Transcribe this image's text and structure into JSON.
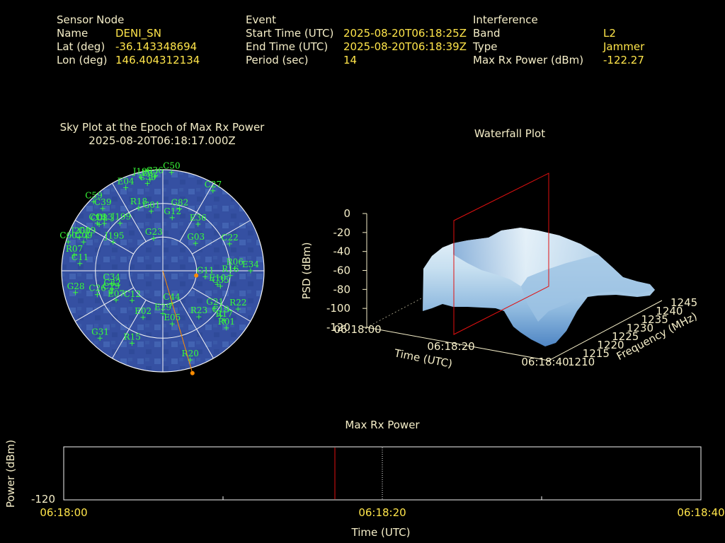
{
  "header": {
    "sensor": {
      "title": "Sensor Node",
      "rows": [
        {
          "label": "Name",
          "value": "DENI_SN"
        },
        {
          "label": "Lat (deg)",
          "value": "-36.143348694"
        },
        {
          "label": "Lon (deg)",
          "value": "146.404312134"
        }
      ]
    },
    "event": {
      "title": "Event",
      "rows": [
        {
          "label": "Start Time (UTC)",
          "value": "2025-08-20T06:18:25Z"
        },
        {
          "label": "End Time (UTC)",
          "value": "2025-08-20T06:18:39Z"
        },
        {
          "label": "Period (sec)",
          "value": "14"
        }
      ]
    },
    "interference": {
      "title": "Interference",
      "rows": [
        {
          "label": "Band",
          "value": "L2"
        },
        {
          "label": "Type",
          "value": "Jammer"
        },
        {
          "label": "Max Rx Power (dBm)",
          "value": "-122.27"
        }
      ]
    }
  },
  "colors": {
    "label": "#f5eec8",
    "value": "#ffe54a",
    "sat": "#39ff39",
    "sky": "#3550a2",
    "marker": "#ff8c00",
    "red": "#e01010"
  },
  "chart_data": [
    {
      "type": "scatter",
      "name": "skyplot",
      "title": "Sky Plot at the Epoch of Max Rx Power",
      "subtitle": "2025-08-20T06:18:17.000Z",
      "satellites": [
        {
          "id": "C50",
          "az": 5,
          "el": 2
        },
        {
          "id": "J196",
          "az": 347,
          "el": 5
        },
        {
          "id": "E32",
          "az": 352,
          "el": 8
        },
        {
          "id": "C36",
          "az": 355,
          "el": 6
        },
        {
          "id": "C30",
          "az": 350,
          "el": 11
        },
        {
          "id": "E04",
          "az": 336,
          "el": 9
        },
        {
          "id": "C27",
          "az": 32,
          "el": 6
        },
        {
          "id": "C59",
          "az": 315,
          "el": 3
        },
        {
          "id": "C39",
          "az": 316,
          "el": 13
        },
        {
          "id": "C16",
          "az": 306,
          "el": 18
        },
        {
          "id": "C08",
          "az": 306,
          "el": 20
        },
        {
          "id": "C13",
          "az": 309,
          "el": 23
        },
        {
          "id": "R18",
          "az": 339,
          "el": 30
        },
        {
          "id": "J199",
          "az": 318,
          "el": 33
        },
        {
          "id": "G01",
          "az": 349,
          "el": 36
        },
        {
          "id": "G82",
          "az": 15,
          "el": 33
        },
        {
          "id": "G12",
          "az": 10,
          "el": 42
        },
        {
          "id": "E36",
          "az": 37,
          "el": 38
        },
        {
          "id": "J200",
          "az": 292,
          "el": 10
        },
        {
          "id": "G19",
          "az": 294,
          "el": 16
        },
        {
          "id": "C60",
          "az": 287,
          "el": 2
        },
        {
          "id": "C09",
          "az": 290,
          "el": 15
        },
        {
          "id": "J195",
          "az": 300,
          "el": 39
        },
        {
          "id": "G23",
          "az": 344,
          "el": 60
        },
        {
          "id": "G03",
          "az": 50,
          "el": 52
        },
        {
          "id": "C22",
          "az": 68,
          "el": 26
        },
        {
          "id": "R07",
          "az": 280,
          "el": 10
        },
        {
          "id": "C11",
          "az": 275,
          "el": 16
        },
        {
          "id": "C34",
          "az": 256,
          "el": 43
        },
        {
          "id": "C32",
          "az": 250,
          "el": 42
        },
        {
          "id": "G28",
          "az": 256,
          "el": 10
        },
        {
          "id": "C26",
          "az": 250,
          "el": 28
        },
        {
          "id": "C29",
          "az": 247,
          "el": 40
        },
        {
          "id": "E07",
          "az": 238,
          "el": 41
        },
        {
          "id": "C12",
          "az": 226,
          "el": 52
        },
        {
          "id": "C44",
          "az": 165,
          "el": 60
        },
        {
          "id": "E05",
          "az": 170,
          "el": 42
        },
        {
          "id": "G11",
          "az": 98,
          "el": 52
        },
        {
          "id": "E10",
          "az": 104,
          "el": 40
        },
        {
          "id": "R06",
          "az": 88,
          "el": 26
        },
        {
          "id": "R16",
          "az": 94,
          "el": 30
        },
        {
          "id": "E34",
          "az": 90,
          "el": 12
        },
        {
          "id": "C35",
          "az": 105,
          "el": 37
        },
        {
          "id": "G21",
          "az": 126,
          "el": 33
        },
        {
          "id": "C19",
          "az": 128,
          "el": 25
        },
        {
          "id": "R22",
          "az": 117,
          "el": 15
        },
        {
          "id": "R17",
          "az": 129,
          "el": 20
        },
        {
          "id": "R01",
          "az": 132,
          "el": 14
        },
        {
          "id": "R23",
          "az": 142,
          "el": 38
        },
        {
          "id": "E02",
          "az": 203,
          "el": 45
        },
        {
          "id": "G31",
          "az": 223,
          "el": 8
        },
        {
          "id": "R15",
          "az": 203,
          "el": 20
        },
        {
          "id": "R20",
          "az": 163,
          "el": 7
        },
        {
          "id": "E29",
          "az": 180,
          "el": 52
        }
      ],
      "max_power_direction": {
        "az": 163,
        "el": -2
      },
      "highlight": {
        "az": 98,
        "el": 60
      }
    },
    {
      "type": "surface",
      "name": "waterfall",
      "title": "Waterfall Plot",
      "zlabel": "PSD (dBm)",
      "zticks": [
        "0",
        "-20",
        "-40",
        "-60",
        "-80",
        "-100",
        "-120"
      ],
      "xlabel": "Time (UTC)",
      "xticks": [
        "06:18:00",
        "06:18:20",
        "06:18:40"
      ],
      "ylabel": "Frequency (MHz)",
      "yticks": [
        "1210",
        "1215",
        "1220",
        "1225",
        "1230",
        "1235",
        "1240",
        "1245"
      ]
    },
    {
      "type": "line",
      "name": "maxrx",
      "title": "Max Rx Power",
      "ylabel": "Power (dBm)",
      "yticks": [
        "-120"
      ],
      "xlabel": "Time (UTC)",
      "xticks": [
        "06:18:00",
        "06:18:20",
        "06:18:40"
      ],
      "event_time": "06:18:17"
    }
  ]
}
